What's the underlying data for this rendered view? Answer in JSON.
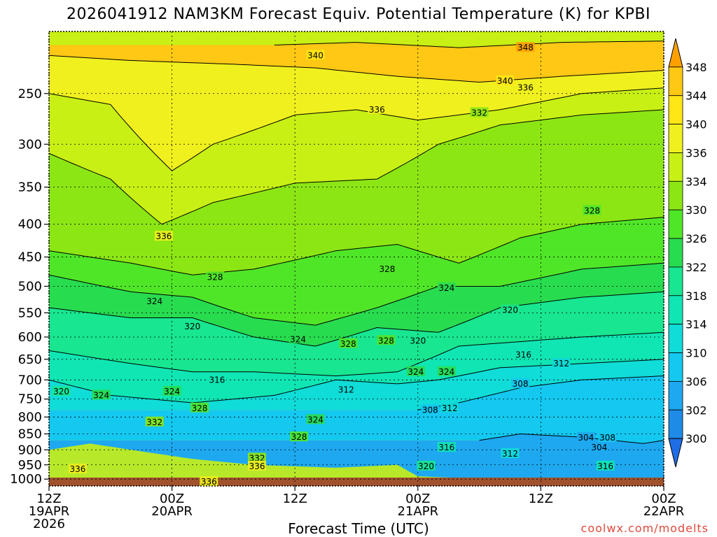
{
  "title": "2026041912 NAM3KM Forecast Equiv. Potential Temperature (K) for KPBI",
  "xlabel": "Forecast Time (UTC)",
  "credit": "coolwx.com/modelts",
  "chart_data": {
    "type": "heatmap",
    "title": "2026041912 NAM3KM Forecast Equiv. Potential Temperature (K) for KPBI",
    "xlabel": "Forecast Time (UTC)",
    "ylabel": "",
    "x_ticks": [
      {
        "hour": 0,
        "lines": [
          "12Z",
          "19APR",
          "2026"
        ]
      },
      {
        "hour": 12,
        "lines": [
          "00Z",
          "20APR"
        ]
      },
      {
        "hour": 24,
        "lines": [
          "12Z"
        ]
      },
      {
        "hour": 36,
        "lines": [
          "00Z",
          "21APR"
        ]
      },
      {
        "hour": 48,
        "lines": [
          "12Z"
        ]
      },
      {
        "hour": 60,
        "lines": [
          "00Z",
          "22APR"
        ]
      }
    ],
    "xlim": [
      0,
      60
    ],
    "y_ticks": [
      250,
      300,
      350,
      400,
      450,
      500,
      550,
      600,
      650,
      700,
      750,
      800,
      850,
      900,
      950,
      1000
    ],
    "ylim": [
      1025,
      200
    ],
    "y_scale": "log-pressure",
    "colorbar": {
      "levels": [
        298,
        300,
        302,
        306,
        310,
        314,
        318,
        322,
        326,
        330,
        334,
        336,
        340,
        344,
        348,
        350
      ],
      "labels": [
        300,
        302,
        306,
        310,
        314,
        318,
        322,
        326,
        330,
        334,
        336,
        340,
        344,
        348
      ],
      "colors": [
        "#1e6ee6",
        "#1e8ce6",
        "#1ea8f0",
        "#14c8f0",
        "#10dcd8",
        "#10e6b4",
        "#18e690",
        "#28dc50",
        "#50e628",
        "#8ce614",
        "#c8f014",
        "#f0f01e",
        "#ffe614",
        "#ffc814",
        "#ffa000"
      ]
    },
    "isotherms_K": [
      {
        "value": 348,
        "pts": [
          [
            22,
            210
          ],
          [
            30,
            208
          ],
          [
            40,
            212
          ],
          [
            50,
            208
          ],
          [
            60,
            207
          ]
        ]
      },
      {
        "value": 340,
        "pts": [
          [
            0,
            218
          ],
          [
            8,
            222
          ],
          [
            18,
            225
          ],
          [
            26,
            228
          ],
          [
            34,
            235
          ],
          [
            42,
            240
          ],
          [
            50,
            235
          ],
          [
            60,
            230
          ]
        ]
      },
      {
        "value": 336,
        "pts": [
          [
            0,
            250
          ],
          [
            6,
            260
          ],
          [
            12,
            330
          ],
          [
            16,
            300
          ],
          [
            24,
            270
          ],
          [
            30,
            265
          ],
          [
            36,
            275
          ],
          [
            44,
            265
          ],
          [
            52,
            250
          ],
          [
            60,
            245
          ]
        ]
      },
      {
        "value": 332,
        "pts": [
          [
            0,
            310
          ],
          [
            6,
            340
          ],
          [
            11,
            400
          ],
          [
            16,
            370
          ],
          [
            24,
            345
          ],
          [
            32,
            340
          ],
          [
            38,
            300
          ],
          [
            44,
            280
          ],
          [
            52,
            270
          ],
          [
            60,
            265
          ]
        ]
      },
      {
        "value": 328,
        "pts": [
          [
            0,
            440
          ],
          [
            8,
            460
          ],
          [
            14,
            480
          ],
          [
            20,
            470
          ],
          [
            28,
            440
          ],
          [
            34,
            430
          ],
          [
            40,
            460
          ],
          [
            46,
            420
          ],
          [
            52,
            400
          ],
          [
            60,
            390
          ]
        ]
      },
      {
        "value": 324,
        "pts": [
          [
            0,
            480
          ],
          [
            8,
            510
          ],
          [
            14,
            520
          ],
          [
            20,
            560
          ],
          [
            26,
            575
          ],
          [
            32,
            540
          ],
          [
            38,
            500
          ],
          [
            44,
            500
          ],
          [
            52,
            470
          ],
          [
            60,
            460
          ]
        ]
      },
      {
        "value": 320,
        "pts": [
          [
            0,
            540
          ],
          [
            8,
            560
          ],
          [
            14,
            560
          ],
          [
            20,
            600
          ],
          [
            26,
            620
          ],
          [
            32,
            580
          ],
          [
            38,
            590
          ],
          [
            44,
            540
          ],
          [
            52,
            520
          ],
          [
            60,
            510
          ]
        ]
      },
      {
        "value": 316,
        "pts": [
          [
            0,
            630
          ],
          [
            8,
            660
          ],
          [
            14,
            680
          ],
          [
            20,
            680
          ],
          [
            28,
            690
          ],
          [
            34,
            680
          ],
          [
            40,
            620
          ],
          [
            46,
            610
          ],
          [
            52,
            600
          ],
          [
            60,
            590
          ]
        ]
      },
      {
        "value": 312,
        "pts": [
          [
            0,
            700
          ],
          [
            6,
            740
          ],
          [
            14,
            760
          ],
          [
            22,
            740
          ],
          [
            28,
            700
          ],
          [
            34,
            710
          ],
          [
            38,
            700
          ],
          [
            44,
            670
          ],
          [
            52,
            660
          ],
          [
            60,
            650
          ]
        ]
      },
      {
        "value": 308,
        "pts": [
          [
            36,
            780
          ],
          [
            40,
            760
          ],
          [
            46,
            720
          ],
          [
            52,
            700
          ],
          [
            60,
            690
          ]
        ]
      },
      {
        "value": 304,
        "pts": [
          [
            42,
            870
          ],
          [
            46,
            850
          ],
          [
            52,
            860
          ],
          [
            58,
            880
          ],
          [
            60,
            870
          ]
        ]
      }
    ],
    "contour_labels": [
      {
        "text": "348",
        "hour": 46.5,
        "p": 212
      },
      {
        "text": "340",
        "hour": 26,
        "p": 218
      },
      {
        "text": "340",
        "hour": 44.5,
        "p": 239
      },
      {
        "text": "336",
        "hour": 46.5,
        "p": 245
      },
      {
        "text": "336",
        "hour": 32,
        "p": 265
      },
      {
        "text": "332",
        "hour": 42,
        "p": 268
      },
      {
        "text": "328",
        "hour": 53,
        "p": 381
      },
      {
        "text": "336",
        "hour": 11.2,
        "p": 418
      },
      {
        "text": "328",
        "hour": 33,
        "p": 470
      },
      {
        "text": "328",
        "hour": 16.2,
        "p": 484
      },
      {
        "text": "324",
        "hour": 38.8,
        "p": 503
      },
      {
        "text": "324",
        "hour": 10.3,
        "p": 528
      },
      {
        "text": "320",
        "hour": 45,
        "p": 545
      },
      {
        "text": "320",
        "hour": 14,
        "p": 578
      },
      {
        "text": "324",
        "hour": 24.3,
        "p": 605
      },
      {
        "text": "328",
        "hour": 29.2,
        "p": 615
      },
      {
        "text": "328",
        "hour": 32.9,
        "p": 608
      },
      {
        "text": "320",
        "hour": 36,
        "p": 608
      },
      {
        "text": "316",
        "hour": 46.3,
        "p": 640
      },
      {
        "text": "312",
        "hour": 50,
        "p": 660
      },
      {
        "text": "324",
        "hour": 35.8,
        "p": 680
      },
      {
        "text": "324",
        "hour": 38.8,
        "p": 680
      },
      {
        "text": "316",
        "hour": 16.4,
        "p": 700
      },
      {
        "text": "308",
        "hour": 46,
        "p": 710
      },
      {
        "text": "312",
        "hour": 29,
        "p": 725
      },
      {
        "text": "320",
        "hour": 1.2,
        "p": 730
      },
      {
        "text": "324",
        "hour": 5.1,
        "p": 740
      },
      {
        "text": "324",
        "hour": 12,
        "p": 730
      },
      {
        "text": "312",
        "hour": 39.1,
        "p": 775
      },
      {
        "text": "308",
        "hour": 37.2,
        "p": 780
      },
      {
        "text": "328",
        "hour": 14.7,
        "p": 775
      },
      {
        "text": "324",
        "hour": 26,
        "p": 808
      },
      {
        "text": "332",
        "hour": 10.3,
        "p": 815
      },
      {
        "text": "328",
        "hour": 24.4,
        "p": 860
      },
      {
        "text": "304",
        "hour": 52.4,
        "p": 862
      },
      {
        "text": "308",
        "hour": 54.5,
        "p": 862
      },
      {
        "text": "316",
        "hour": 38.8,
        "p": 893
      },
      {
        "text": "304",
        "hour": 53.7,
        "p": 893
      },
      {
        "text": "312",
        "hour": 45,
        "p": 913
      },
      {
        "text": "332",
        "hour": 20.3,
        "p": 928
      },
      {
        "text": "320",
        "hour": 36.8,
        "p": 955
      },
      {
        "text": "336",
        "hour": 20.3,
        "p": 955
      },
      {
        "text": "316",
        "hour": 54.3,
        "p": 955
      },
      {
        "text": "336",
        "hour": 2.8,
        "p": 965
      },
      {
        "text": "336",
        "hour": 15.6,
        "p": 1010
      }
    ]
  }
}
